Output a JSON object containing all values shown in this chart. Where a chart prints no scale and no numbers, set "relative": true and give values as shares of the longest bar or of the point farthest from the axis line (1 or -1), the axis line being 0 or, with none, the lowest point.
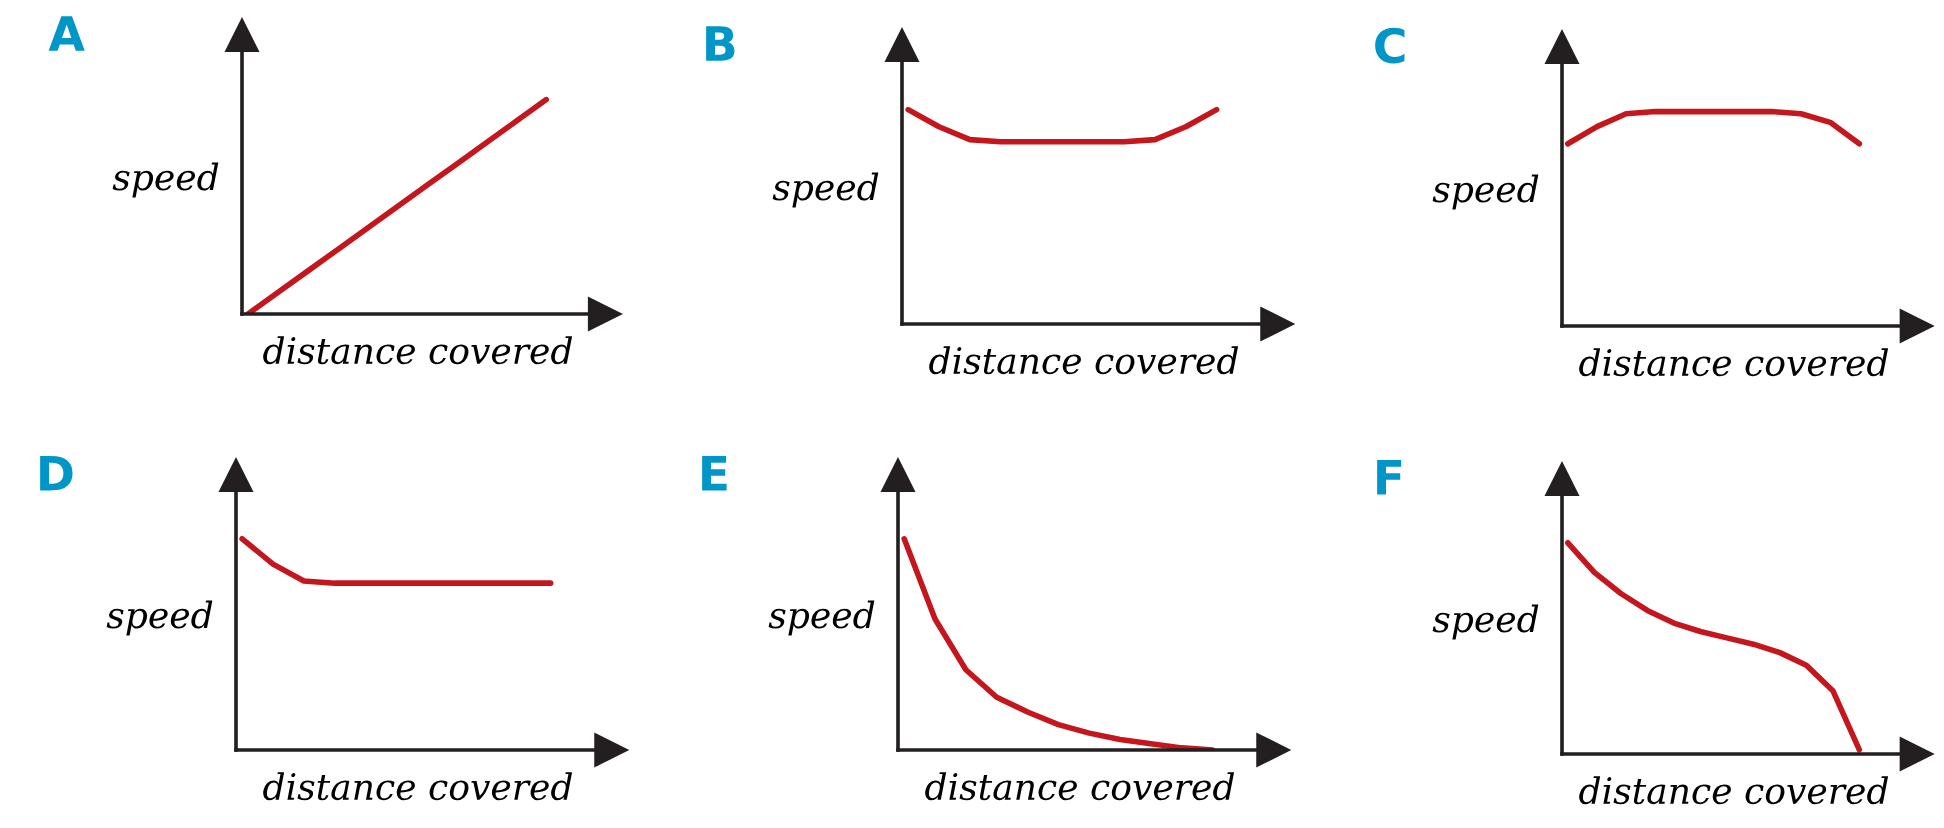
{
  "chart_data": [
    {
      "type": "line",
      "title": "A",
      "xlabel": "distance covered",
      "ylabel": "speed",
      "relative": true,
      "categories": [
        null,
        null,
        null,
        null,
        null,
        null,
        null,
        null,
        null,
        null,
        null
      ],
      "series": [
        {
          "color": "#c4161c",
          "values": [
            0,
            0.1,
            0.2,
            0.3,
            0.4,
            0.5,
            0.6,
            0.7,
            0.8,
            0.9,
            1
          ]
        }
      ]
    },
    {
      "type": "line",
      "title": "B",
      "xlabel": "distance covered",
      "ylabel": "speed",
      "relative": true,
      "categories": [
        null,
        null,
        null,
        null,
        null,
        null,
        null,
        null,
        null,
        null,
        null
      ],
      "series": [
        {
          "color": "#c4161c",
          "values": [
            1,
            0.92,
            0.86,
            0.85,
            0.85,
            0.85,
            0.85,
            0.85,
            0.86,
            0.92,
            1
          ]
        }
      ]
    },
    {
      "type": "line",
      "title": "C",
      "xlabel": "distance covered",
      "ylabel": "speed",
      "relative": true,
      "categories": [
        null,
        null,
        null,
        null,
        null,
        null,
        null,
        null,
        null,
        null,
        null
      ],
      "series": [
        {
          "color": "#c4161c",
          "values": [
            0.85,
            0.93,
            0.99,
            1,
            1,
            1,
            1,
            1,
            0.99,
            0.95,
            0.85
          ]
        }
      ]
    },
    {
      "type": "line",
      "title": "D",
      "xlabel": "distance covered",
      "ylabel": "speed",
      "relative": true,
      "categories": [
        null,
        null,
        null,
        null,
        null,
        null,
        null,
        null,
        null,
        null,
        null
      ],
      "series": [
        {
          "color": "#c4161c",
          "values": [
            1,
            0.88,
            0.8,
            0.79,
            0.79,
            0.79,
            0.79,
            0.79,
            0.79,
            0.79,
            0.79
          ]
        }
      ]
    },
    {
      "type": "line",
      "title": "E",
      "xlabel": "distance covered",
      "ylabel": "speed",
      "relative": true,
      "categories": [
        null,
        null,
        null,
        null,
        null,
        null,
        null,
        null,
        null,
        null,
        null
      ],
      "series": [
        {
          "color": "#c4161c",
          "values": [
            1,
            0.62,
            0.38,
            0.25,
            0.18,
            0.12,
            0.08,
            0.05,
            0.03,
            0.01,
            0
          ]
        }
      ]
    },
    {
      "type": "line",
      "title": "F",
      "xlabel": "distance covered",
      "ylabel": "speed",
      "relative": true,
      "categories": [
        null,
        null,
        null,
        null,
        null,
        null,
        null,
        null,
        null,
        null,
        null,
        null
      ],
      "series": [
        {
          "color": "#c4161c",
          "values": [
            1,
            0.86,
            0.76,
            0.68,
            0.62,
            0.58,
            0.55,
            0.52,
            0.48,
            0.42,
            0.3,
            0.02
          ]
        }
      ]
    }
  ]
}
